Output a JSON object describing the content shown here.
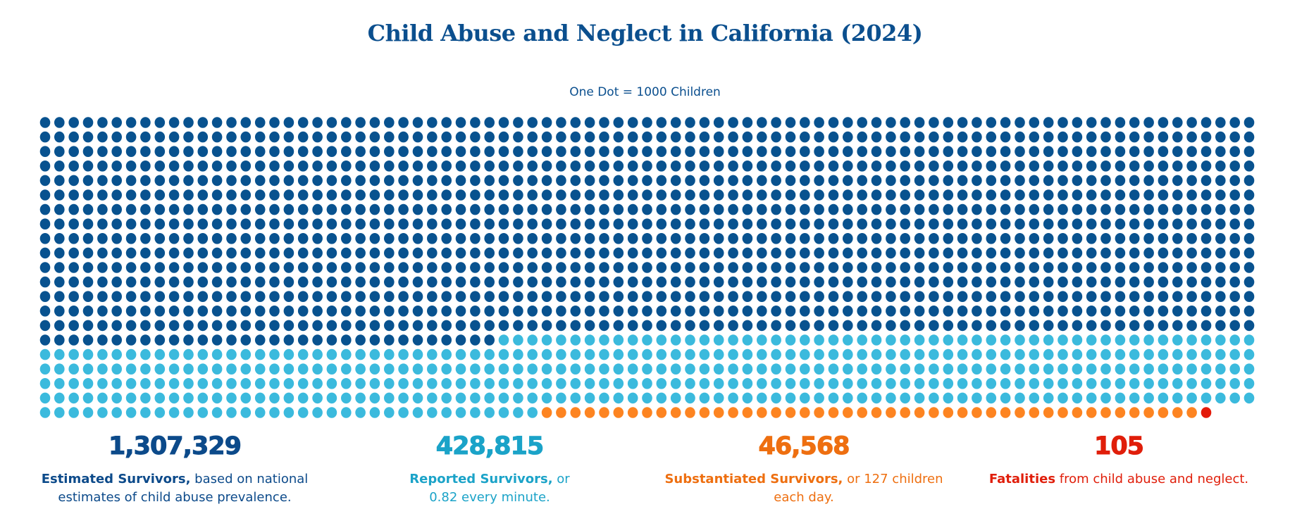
{
  "chart_data": {
    "type": "waffle",
    "title": "Child Abuse and Neglect in California (2024)",
    "subtitle": "One Dot = 1000 Children",
    "grid": {
      "columns": 85,
      "rows": 21
    },
    "categories": [
      "Estimated Survivors",
      "Reported Survivors",
      "Substantiated Survivors",
      "Fatalities"
    ],
    "dot_counts": [
      1307,
      428,
      46,
      1
    ],
    "colors": {
      "dots": [
        "#08528f",
        "#3bbadd",
        "#fd8421",
        "#e31a0a"
      ],
      "text": [
        "#0c4a8a",
        "#1ba3c8",
        "#ee6f10",
        "#e01e0a"
      ]
    },
    "stats": [
      {
        "value": "1,307,329",
        "bold": "Estimated Survivors,",
        "rest": " based on national estimates of child abuse prevalence."
      },
      {
        "value": "428,815",
        "bold": "Reported Survivors,",
        "rest": " or 0.82 every minute."
      },
      {
        "value": "46,568",
        "bold": "Substantiated Survivors,",
        "rest": " or 127 children each day."
      },
      {
        "value": "105",
        "bold": "Fatalities",
        "rest": " from child abuse and neglect."
      }
    ]
  }
}
